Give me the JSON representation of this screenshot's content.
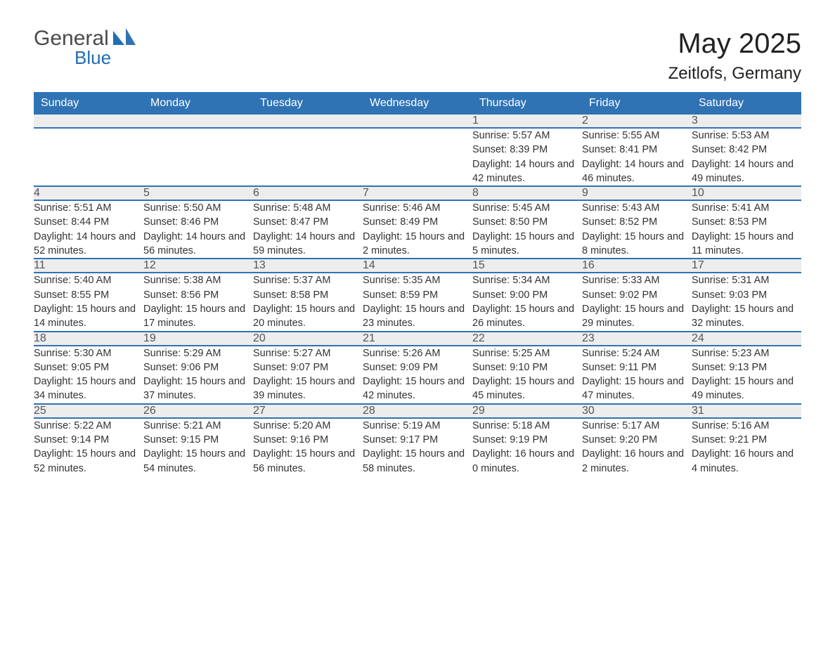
{
  "brand": {
    "word1": "General",
    "word2": "Blue"
  },
  "title": "May 2025",
  "location": "Zeitlofs, Germany",
  "colors": {
    "header_bg": "#2f73b5",
    "header_text": "#ffffff",
    "daynum_bg": "#ededed",
    "border": "#2f73b5",
    "body_text": "#333333",
    "logo_gray": "#4a4a4a",
    "logo_blue": "#1f6db5",
    "page_bg": "#ffffff"
  },
  "layout": {
    "columns": 7,
    "weeks": 5,
    "start_day_index": 4,
    "font_family": "Arial",
    "title_fontsize": 40,
    "location_fontsize": 24,
    "header_fontsize": 16,
    "daynum_fontsize": 16,
    "detail_fontsize": 14.5
  },
  "weekdays": [
    "Sunday",
    "Monday",
    "Tuesday",
    "Wednesday",
    "Thursday",
    "Friday",
    "Saturday"
  ],
  "days": [
    {
      "n": 1,
      "sr": "5:57 AM",
      "ss": "8:39 PM",
      "dl": "14 hours and 42 minutes."
    },
    {
      "n": 2,
      "sr": "5:55 AM",
      "ss": "8:41 PM",
      "dl": "14 hours and 46 minutes."
    },
    {
      "n": 3,
      "sr": "5:53 AM",
      "ss": "8:42 PM",
      "dl": "14 hours and 49 minutes."
    },
    {
      "n": 4,
      "sr": "5:51 AM",
      "ss": "8:44 PM",
      "dl": "14 hours and 52 minutes."
    },
    {
      "n": 5,
      "sr": "5:50 AM",
      "ss": "8:46 PM",
      "dl": "14 hours and 56 minutes."
    },
    {
      "n": 6,
      "sr": "5:48 AM",
      "ss": "8:47 PM",
      "dl": "14 hours and 59 minutes."
    },
    {
      "n": 7,
      "sr": "5:46 AM",
      "ss": "8:49 PM",
      "dl": "15 hours and 2 minutes."
    },
    {
      "n": 8,
      "sr": "5:45 AM",
      "ss": "8:50 PM",
      "dl": "15 hours and 5 minutes."
    },
    {
      "n": 9,
      "sr": "5:43 AM",
      "ss": "8:52 PM",
      "dl": "15 hours and 8 minutes."
    },
    {
      "n": 10,
      "sr": "5:41 AM",
      "ss": "8:53 PM",
      "dl": "15 hours and 11 minutes."
    },
    {
      "n": 11,
      "sr": "5:40 AM",
      "ss": "8:55 PM",
      "dl": "15 hours and 14 minutes."
    },
    {
      "n": 12,
      "sr": "5:38 AM",
      "ss": "8:56 PM",
      "dl": "15 hours and 17 minutes."
    },
    {
      "n": 13,
      "sr": "5:37 AM",
      "ss": "8:58 PM",
      "dl": "15 hours and 20 minutes."
    },
    {
      "n": 14,
      "sr": "5:35 AM",
      "ss": "8:59 PM",
      "dl": "15 hours and 23 minutes."
    },
    {
      "n": 15,
      "sr": "5:34 AM",
      "ss": "9:00 PM",
      "dl": "15 hours and 26 minutes."
    },
    {
      "n": 16,
      "sr": "5:33 AM",
      "ss": "9:02 PM",
      "dl": "15 hours and 29 minutes."
    },
    {
      "n": 17,
      "sr": "5:31 AM",
      "ss": "9:03 PM",
      "dl": "15 hours and 32 minutes."
    },
    {
      "n": 18,
      "sr": "5:30 AM",
      "ss": "9:05 PM",
      "dl": "15 hours and 34 minutes."
    },
    {
      "n": 19,
      "sr": "5:29 AM",
      "ss": "9:06 PM",
      "dl": "15 hours and 37 minutes."
    },
    {
      "n": 20,
      "sr": "5:27 AM",
      "ss": "9:07 PM",
      "dl": "15 hours and 39 minutes."
    },
    {
      "n": 21,
      "sr": "5:26 AM",
      "ss": "9:09 PM",
      "dl": "15 hours and 42 minutes."
    },
    {
      "n": 22,
      "sr": "5:25 AM",
      "ss": "9:10 PM",
      "dl": "15 hours and 45 minutes."
    },
    {
      "n": 23,
      "sr": "5:24 AM",
      "ss": "9:11 PM",
      "dl": "15 hours and 47 minutes."
    },
    {
      "n": 24,
      "sr": "5:23 AM",
      "ss": "9:13 PM",
      "dl": "15 hours and 49 minutes."
    },
    {
      "n": 25,
      "sr": "5:22 AM",
      "ss": "9:14 PM",
      "dl": "15 hours and 52 minutes."
    },
    {
      "n": 26,
      "sr": "5:21 AM",
      "ss": "9:15 PM",
      "dl": "15 hours and 54 minutes."
    },
    {
      "n": 27,
      "sr": "5:20 AM",
      "ss": "9:16 PM",
      "dl": "15 hours and 56 minutes."
    },
    {
      "n": 28,
      "sr": "5:19 AM",
      "ss": "9:17 PM",
      "dl": "15 hours and 58 minutes."
    },
    {
      "n": 29,
      "sr": "5:18 AM",
      "ss": "9:19 PM",
      "dl": "16 hours and 0 minutes."
    },
    {
      "n": 30,
      "sr": "5:17 AM",
      "ss": "9:20 PM",
      "dl": "16 hours and 2 minutes."
    },
    {
      "n": 31,
      "sr": "5:16 AM",
      "ss": "9:21 PM",
      "dl": "16 hours and 4 minutes."
    }
  ],
  "labels": {
    "sunrise": "Sunrise: ",
    "sunset": "Sunset: ",
    "daylight": "Daylight: "
  }
}
